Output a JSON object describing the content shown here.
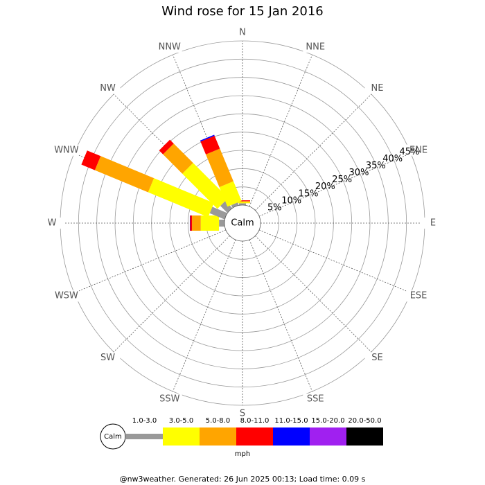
{
  "chart_data": {
    "type": "windrose",
    "title": "Wind rose for 15 Jan 2016",
    "categories": [
      "N",
      "NNE",
      "NE",
      "ENE",
      "E",
      "ESE",
      "SE",
      "SSE",
      "S",
      "SSW",
      "SW",
      "WSW",
      "W",
      "WNW",
      "NW",
      "NNW"
    ],
    "series": [
      {
        "name": "1.0-3.0",
        "color": "#999999",
        "values": [
          0.5,
          0,
          0,
          0,
          0,
          0,
          0,
          0,
          0,
          0,
          0,
          0,
          1.5,
          4.4,
          2.7,
          0.8
        ]
      },
      {
        "name": "3.0-5.0",
        "color": "#ffff00",
        "values": [
          0.3,
          0,
          0,
          0,
          0,
          0,
          0,
          0,
          0,
          0,
          0,
          0,
          5.0,
          17.8,
          13.6,
          5.8
        ]
      },
      {
        "name": "5.0-8.0",
        "color": "#ffa500",
        "values": [
          0.3,
          0,
          0,
          0,
          0,
          0,
          0,
          0,
          0,
          0,
          0,
          0,
          2.4,
          15.8,
          7.5,
          9.7
        ]
      },
      {
        "name": "8.0-11.0",
        "color": "#ff0000",
        "values": [
          0.2,
          0,
          0,
          0,
          0,
          0,
          0,
          0,
          0,
          0,
          0,
          0,
          0.5,
          4.0,
          1.5,
          3.8
        ]
      },
      {
        "name": "11.0-15.0",
        "color": "#0000ff",
        "values": [
          0,
          0,
          0,
          0,
          0,
          0,
          0,
          0,
          0,
          0,
          0,
          0,
          0.1,
          0,
          0,
          0.3
        ]
      },
      {
        "name": "15.0-20.0",
        "color": "#a020f0",
        "values": [
          0,
          0,
          0,
          0,
          0,
          0,
          0,
          0,
          0,
          0,
          0,
          0,
          0,
          0,
          0,
          0
        ]
      },
      {
        "name": "20.0-50.0",
        "color": "#000000",
        "values": [
          0,
          0,
          0,
          0,
          0,
          0,
          0,
          0,
          0,
          0,
          0,
          0,
          0,
          0,
          0,
          0
        ]
      }
    ],
    "rlim": [
      0,
      45
    ],
    "rticks": [
      {
        "value": 5,
        "label": "5%"
      },
      {
        "value": 10,
        "label": "10%"
      },
      {
        "value": 15,
        "label": "15%"
      },
      {
        "value": 20,
        "label": "20%"
      },
      {
        "value": 25,
        "label": "25%"
      },
      {
        "value": 30,
        "label": "30%"
      },
      {
        "value": 35,
        "label": "35%"
      },
      {
        "value": 40,
        "label": "40%"
      },
      {
        "value": 45,
        "label": "45%"
      }
    ],
    "calm_label": "Calm",
    "legend_unit": "mph",
    "footer": "@nw3weather. Generated: 26 Jun 2025 00:13; Load time: 0.09 s"
  }
}
